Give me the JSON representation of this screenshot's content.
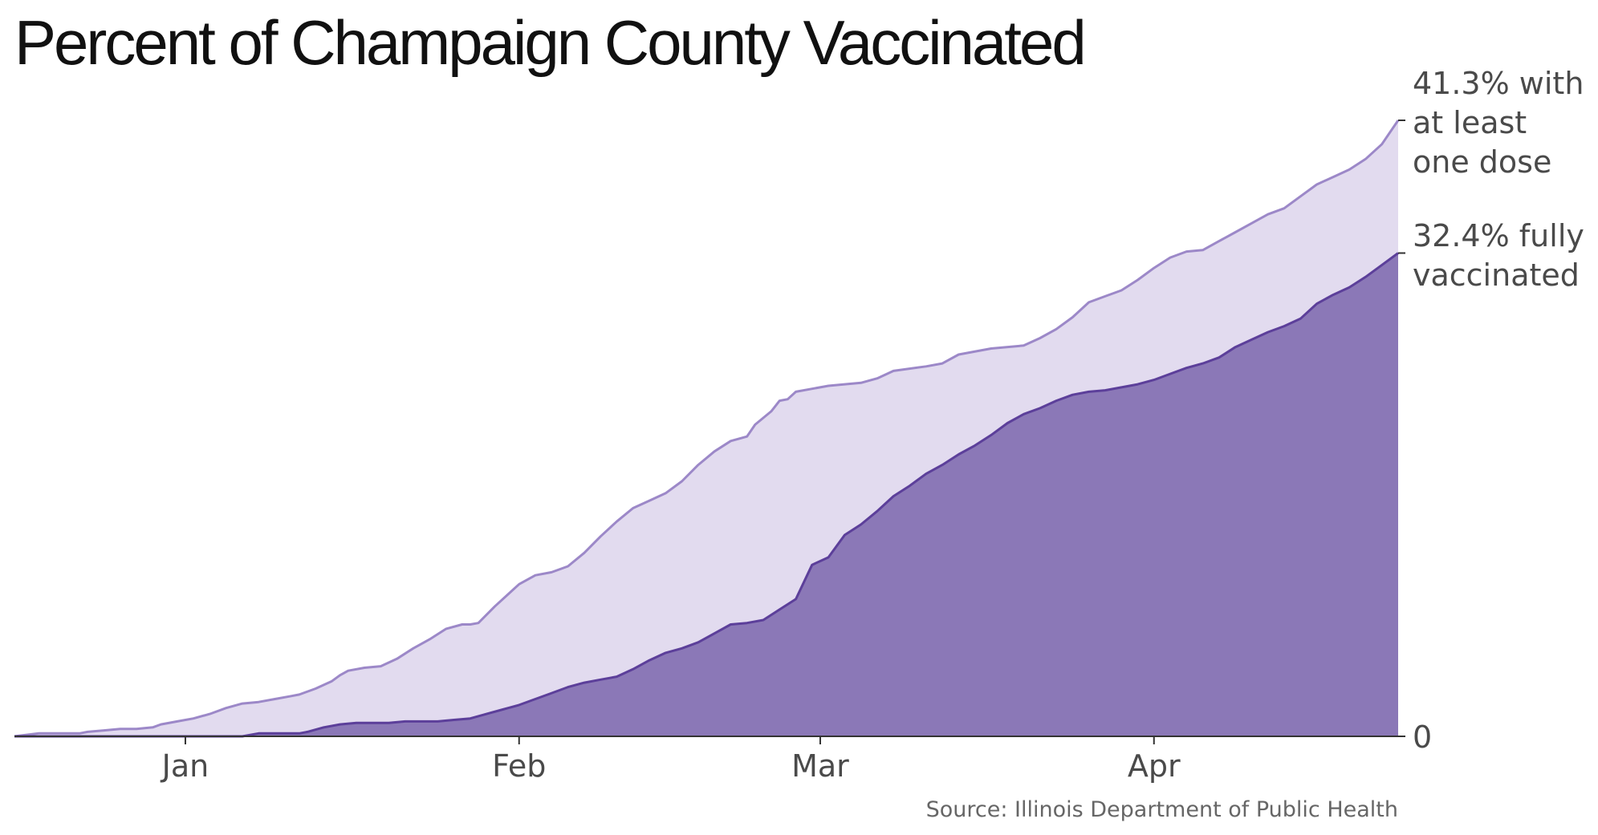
{
  "chart_data": {
    "type": "area",
    "title": "Percent of Champaign County Vaccinated",
    "source": "Source: Illinois Department of Public Health",
    "x_label_ticks": [
      {
        "label": "Jan",
        "day": 21
      },
      {
        "label": "Feb",
        "day": 62
      },
      {
        "label": "Mar",
        "day": 99
      },
      {
        "label": "Apr",
        "day": 140
      }
    ],
    "xlim": [
      0,
      170
    ],
    "ylim": [
      0,
      41.3
    ],
    "y_tick_zero": "0",
    "end_labels": {
      "at_least_one": [
        "41.3% with",
        "at least",
        "one dose"
      ],
      "fully": [
        "32.4% fully",
        "vaccinated"
      ]
    },
    "series": [
      {
        "name": "at least one dose",
        "final": 41.3,
        "color_fill": "#e2dbef",
        "color_line": "#9c88c8",
        "points": [
          [
            0,
            0
          ],
          [
            3,
            0.2
          ],
          [
            7,
            0.2
          ],
          [
            8,
            0.2
          ],
          [
            9,
            0.3
          ],
          [
            11,
            0.4
          ],
          [
            13,
            0.5
          ],
          [
            15,
            0.5
          ],
          [
            17,
            0.6
          ],
          [
            18,
            0.8
          ],
          [
            20,
            1.0
          ],
          [
            22,
            1.2
          ],
          [
            24,
            1.5
          ],
          [
            26,
            1.9
          ],
          [
            28,
            2.2
          ],
          [
            30,
            2.3
          ],
          [
            32,
            2.5
          ],
          [
            34,
            2.7
          ],
          [
            35,
            2.8
          ],
          [
            37,
            3.2
          ],
          [
            39,
            3.7
          ],
          [
            40,
            4.1
          ],
          [
            41,
            4.4
          ],
          [
            43,
            4.6
          ],
          [
            45,
            4.7
          ],
          [
            47,
            5.2
          ],
          [
            49,
            5.9
          ],
          [
            51,
            6.5
          ],
          [
            53,
            7.2
          ],
          [
            55,
            7.5
          ],
          [
            56,
            7.5
          ],
          [
            57,
            7.6
          ],
          [
            59,
            8.7
          ],
          [
            62,
            10.2
          ],
          [
            64,
            10.8
          ],
          [
            66,
            11.0
          ],
          [
            68,
            11.4
          ],
          [
            70,
            12.3
          ],
          [
            72,
            13.4
          ],
          [
            74,
            14.4
          ],
          [
            76,
            15.3
          ],
          [
            78,
            15.8
          ],
          [
            80,
            16.3
          ],
          [
            82,
            17.1
          ],
          [
            84,
            18.2
          ],
          [
            86,
            19.1
          ],
          [
            88,
            19.8
          ],
          [
            90,
            20.1
          ],
          [
            91,
            20.9
          ],
          [
            93,
            21.8
          ],
          [
            94,
            22.5
          ],
          [
            95,
            22.6
          ],
          [
            96,
            23.1
          ],
          [
            98,
            23.3
          ],
          [
            100,
            23.5
          ],
          [
            104,
            23.7
          ],
          [
            106,
            24.0
          ],
          [
            108,
            24.5
          ],
          [
            112,
            24.8
          ],
          [
            114,
            25.0
          ],
          [
            116,
            25.6
          ],
          [
            120,
            26.0
          ],
          [
            124,
            26.2
          ],
          [
            126,
            26.7
          ],
          [
            128,
            27.3
          ],
          [
            130,
            28.1
          ],
          [
            132,
            29.1
          ],
          [
            134,
            29.5
          ],
          [
            136,
            29.9
          ],
          [
            138,
            30.6
          ],
          [
            140,
            31.4
          ],
          [
            142,
            32.1
          ],
          [
            144,
            32.5
          ],
          [
            146,
            32.6
          ],
          [
            148,
            33.2
          ],
          [
            150,
            33.8
          ],
          [
            152,
            34.4
          ],
          [
            154,
            35.0
          ],
          [
            156,
            35.4
          ],
          [
            158,
            36.2
          ],
          [
            160,
            37.0
          ],
          [
            162,
            37.5
          ],
          [
            164,
            38.0
          ],
          [
            166,
            38.7
          ],
          [
            168,
            39.7
          ],
          [
            170,
            41.3
          ]
        ]
      },
      {
        "name": "fully vaccinated",
        "final": 32.4,
        "color_fill": "#8b78b7",
        "color_line": "#5c3f9a",
        "points": [
          [
            0,
            0
          ],
          [
            25,
            0
          ],
          [
            28,
            0
          ],
          [
            30,
            0.2
          ],
          [
            35,
            0.2
          ],
          [
            36,
            0.3
          ],
          [
            38,
            0.6
          ],
          [
            40,
            0.8
          ],
          [
            42,
            0.9
          ],
          [
            44,
            0.9
          ],
          [
            46,
            0.9
          ],
          [
            48,
            1.0
          ],
          [
            50,
            1.0
          ],
          [
            52,
            1.0
          ],
          [
            54,
            1.1
          ],
          [
            56,
            1.2
          ],
          [
            58,
            1.5
          ],
          [
            60,
            1.8
          ],
          [
            62,
            2.1
          ],
          [
            64,
            2.5
          ],
          [
            66,
            2.9
          ],
          [
            68,
            3.3
          ],
          [
            70,
            3.6
          ],
          [
            72,
            3.8
          ],
          [
            74,
            4.0
          ],
          [
            76,
            4.5
          ],
          [
            78,
            5.1
          ],
          [
            80,
            5.6
          ],
          [
            82,
            5.9
          ],
          [
            84,
            6.3
          ],
          [
            86,
            6.9
          ],
          [
            88,
            7.5
          ],
          [
            90,
            7.6
          ],
          [
            92,
            7.8
          ],
          [
            94,
            8.5
          ],
          [
            96,
            9.2
          ],
          [
            98,
            11.5
          ],
          [
            100,
            12.0
          ],
          [
            102,
            13.5
          ],
          [
            104,
            14.2
          ],
          [
            106,
            15.1
          ],
          [
            108,
            16.1
          ],
          [
            110,
            16.8
          ],
          [
            112,
            17.6
          ],
          [
            114,
            18.2
          ],
          [
            116,
            18.9
          ],
          [
            118,
            19.5
          ],
          [
            120,
            20.2
          ],
          [
            122,
            21.0
          ],
          [
            124,
            21.6
          ],
          [
            126,
            22.0
          ],
          [
            128,
            22.5
          ],
          [
            130,
            22.9
          ],
          [
            132,
            23.1
          ],
          [
            134,
            23.2
          ],
          [
            136,
            23.4
          ],
          [
            138,
            23.6
          ],
          [
            140,
            23.9
          ],
          [
            142,
            24.3
          ],
          [
            144,
            24.7
          ],
          [
            146,
            25.0
          ],
          [
            148,
            25.4
          ],
          [
            150,
            26.1
          ],
          [
            152,
            26.6
          ],
          [
            154,
            27.1
          ],
          [
            156,
            27.5
          ],
          [
            158,
            28.0
          ],
          [
            160,
            29.0
          ],
          [
            162,
            29.6
          ],
          [
            164,
            30.1
          ],
          [
            166,
            30.8
          ],
          [
            168,
            31.6
          ],
          [
            170,
            32.4
          ]
        ]
      }
    ]
  }
}
